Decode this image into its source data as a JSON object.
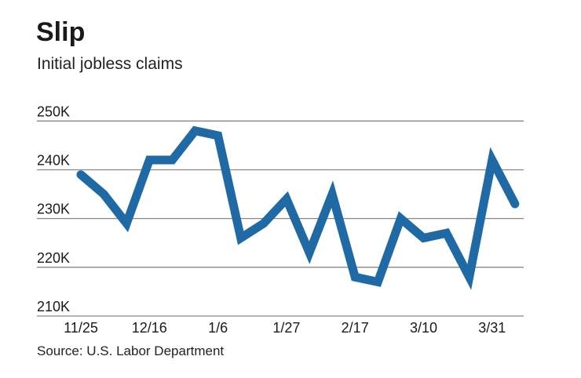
{
  "title": "Slip",
  "subtitle": "Initial jobless claims",
  "source": "Source: U.S. Labor Department",
  "chart_data": {
    "type": "line",
    "title": "Slip",
    "subtitle": "Initial jobless claims",
    "xlabel": "",
    "ylabel": "",
    "x_tick_labels": [
      "11/25",
      "12/16",
      "1/6",
      "1/27",
      "2/17",
      "3/10",
      "3/31"
    ],
    "y_tick_labels": [
      "210K",
      "220K",
      "230K",
      "240K",
      "250K"
    ],
    "y_ticks": [
      210,
      220,
      230,
      240,
      250
    ],
    "ylim": [
      210,
      250
    ],
    "grid": true,
    "color": "#1f6aa5",
    "x": [
      "11/25",
      "12/2",
      "12/9",
      "12/16",
      "12/23",
      "12/30",
      "1/6",
      "1/13",
      "1/20",
      "1/27",
      "2/3",
      "2/10",
      "2/17",
      "2/24",
      "3/3",
      "3/10",
      "3/17",
      "3/24",
      "3/31",
      "4/7"
    ],
    "values": [
      239,
      235,
      229,
      242,
      242,
      248,
      247,
      226,
      229,
      234,
      223,
      235,
      218,
      217,
      230,
      226,
      227,
      218,
      242,
      233
    ]
  }
}
